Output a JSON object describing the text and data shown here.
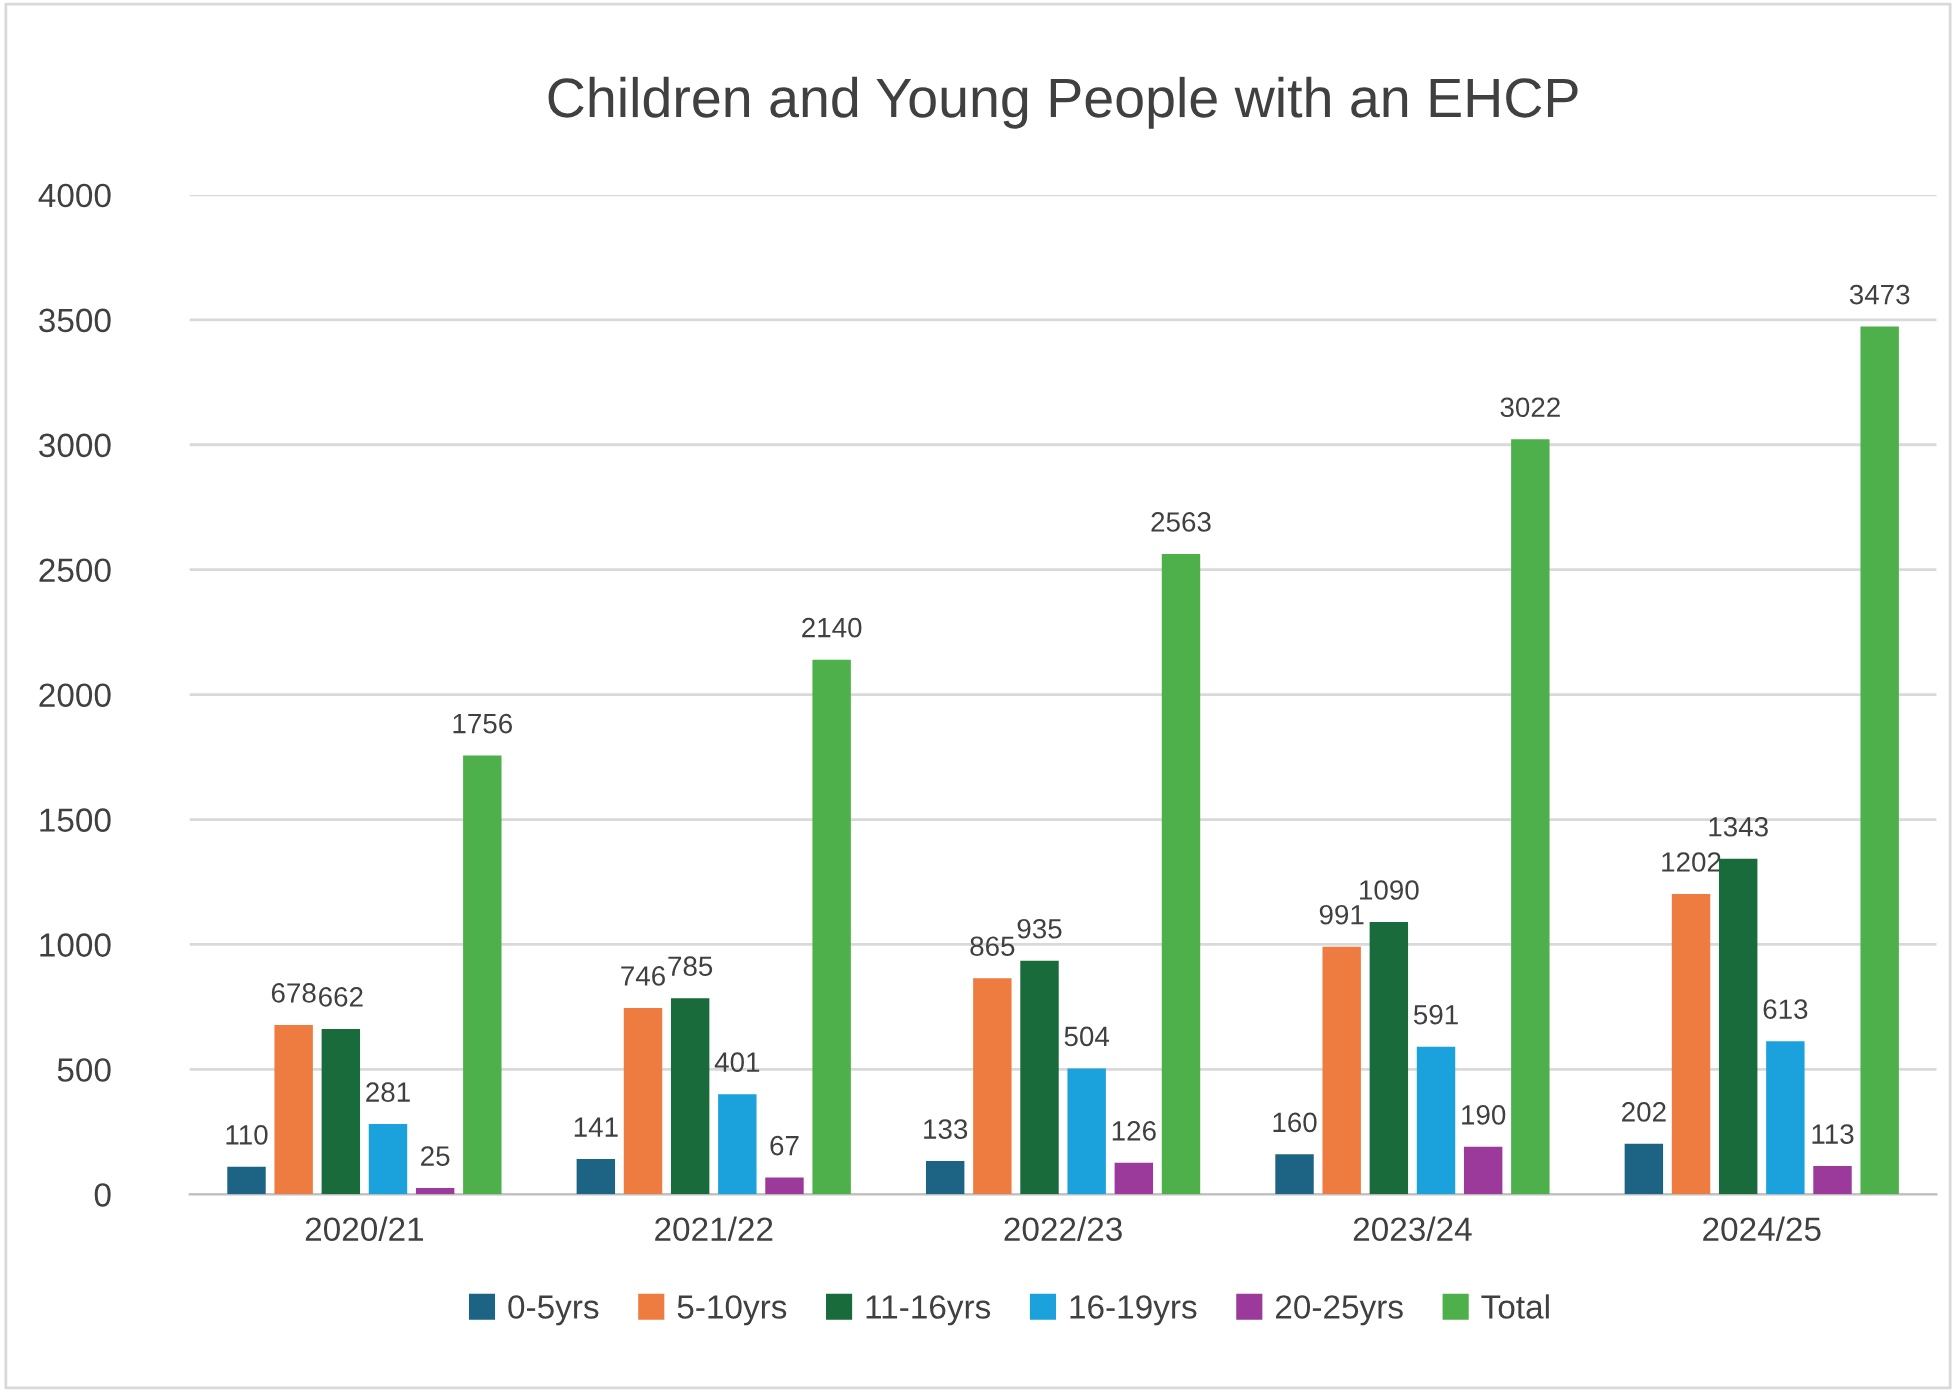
{
  "chart_data": {
    "type": "bar",
    "title": "Children and Young People with an EHCP",
    "categories": [
      "2020/21",
      "2021/22",
      "2022/23",
      "2023/24",
      "2024/25"
    ],
    "series": [
      {
        "name": "0-5yrs",
        "color": "#1d6384",
        "values": [
          110,
          141,
          133,
          160,
          202
        ]
      },
      {
        "name": "5-10yrs",
        "color": "#ee7b3f",
        "values": [
          678,
          746,
          865,
          991,
          1202
        ]
      },
      {
        "name": "11-16yrs",
        "color": "#196b3b",
        "values": [
          662,
          785,
          935,
          1090,
          1343
        ]
      },
      {
        "name": "16-19yrs",
        "color": "#1ba2dc",
        "values": [
          281,
          401,
          504,
          591,
          613
        ]
      },
      {
        "name": "20-25yrs",
        "color": "#9c3a9b",
        "values": [
          25,
          67,
          126,
          190,
          113
        ]
      },
      {
        "name": "Total",
        "color": "#4db04a",
        "values": [
          1756,
          2140,
          2563,
          3022,
          3473
        ]
      }
    ],
    "ylim": [
      0,
      4000
    ],
    "yticks": [
      0,
      500,
      1000,
      1500,
      2000,
      2500,
      3000,
      3500,
      4000
    ],
    "grid": "y",
    "legend": "bottom",
    "data_labels": true
  }
}
